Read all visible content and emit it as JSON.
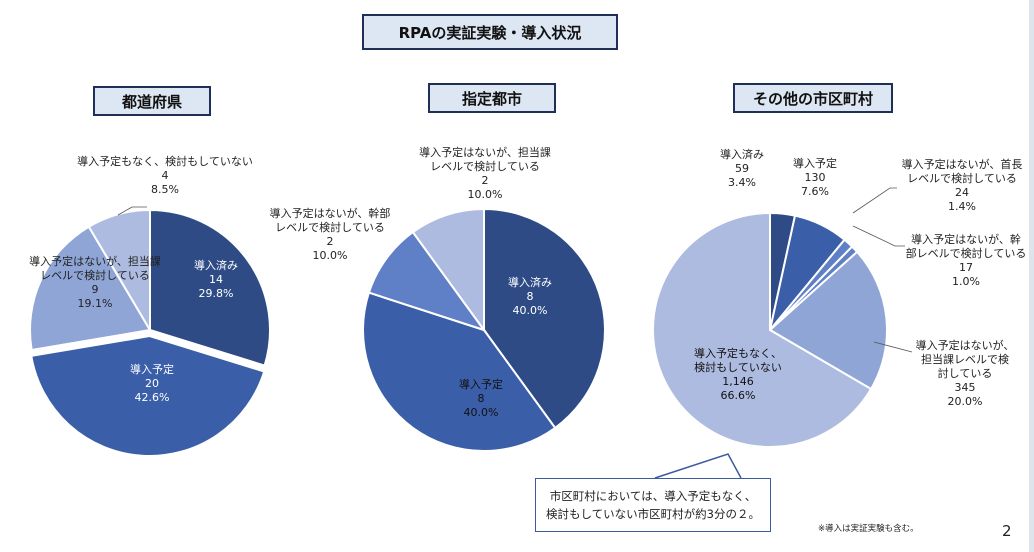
{
  "main_title": "RPAの実証実験・導入状況",
  "footnote": "※導入は実証実験も含む。",
  "page_number": "2",
  "callout": {
    "line1": "市区町村においては、導入予定もなく、",
    "line2": "検討もしていない市区町村が約3分の２。"
  },
  "colors": {
    "c1": "#2e4b86",
    "c2": "#3b5ea8",
    "c3": "#5f7fc6",
    "c4": "#8fa5d6",
    "c5": "#aebbe0"
  },
  "chart_data": [
    {
      "type": "pie",
      "title": "都道府県",
      "categories": [
        "導入済み",
        "導入予定",
        "導入予定はないが、担当課レベルで検討している",
        "導入予定もなく、検討もしていない"
      ],
      "values": [
        14,
        20,
        9,
        4
      ],
      "percents": [
        "29.8%",
        "42.6%",
        "19.1%",
        "8.5%"
      ],
      "labels": [
        {
          "lines": [
            "導入済み",
            "14",
            "29.8%"
          ]
        },
        {
          "lines": [
            "導入予定",
            "20",
            "42.6%"
          ]
        },
        {
          "lines": [
            "導入予定はないが、担当課",
            "レベルで検討している",
            "9",
            "19.1%"
          ]
        },
        {
          "lines": [
            "導入予定もなく、検討もしていない",
            "4",
            "8.5%"
          ]
        }
      ]
    },
    {
      "type": "pie",
      "title": "指定都市",
      "categories": [
        "導入済み",
        "導入予定",
        "導入予定はないが、幹部レベルで検討している",
        "導入予定はないが、担当課レベルで検討している"
      ],
      "values": [
        8,
        8,
        2,
        2
      ],
      "percents": [
        "40.0%",
        "40.0%",
        "10.0%",
        "10.0%"
      ],
      "labels": [
        {
          "lines": [
            "導入済み",
            "8",
            "40.0%"
          ]
        },
        {
          "lines": [
            "導入予定",
            "8",
            "40.0%"
          ]
        },
        {
          "lines": [
            "導入予定はないが、幹部",
            "レベルで検討している",
            "2",
            "10.0%"
          ]
        },
        {
          "lines": [
            "導入予定はないが、担当課",
            "レベルで検討している",
            "2",
            "10.0%"
          ]
        }
      ]
    },
    {
      "type": "pie",
      "title": "その他の市区町村",
      "categories": [
        "導入済み",
        "導入予定",
        "導入予定はないが、首長レベルで検討している",
        "導入予定はないが、幹部レベルで検討している",
        "導入予定はないが、担当課レベルで検討している",
        "導入予定もなく、検討もしていない"
      ],
      "values": [
        59,
        130,
        24,
        17,
        345,
        1146
      ],
      "percents": [
        "3.4%",
        "7.6%",
        "1.4%",
        "1.0%",
        "20.0%",
        "66.6%"
      ],
      "labels": [
        {
          "lines": [
            "導入済み",
            "59",
            "3.4%"
          ]
        },
        {
          "lines": [
            "導入予定",
            "130",
            "7.6%"
          ]
        },
        {
          "lines": [
            "導入予定はないが、首長",
            "レベルで検討している",
            "24",
            "1.4%"
          ]
        },
        {
          "lines": [
            "導入予定はないが、幹",
            "部レベルで検討している",
            "17",
            "1.0%"
          ]
        },
        {
          "lines": [
            "導入予定はないが、",
            "担当課レベルで検",
            "討している",
            "345",
            "20.0%"
          ]
        },
        {
          "lines": [
            "導入予定もなく、",
            "検討もしていない",
            "1,146",
            "66.6%"
          ]
        }
      ]
    }
  ]
}
